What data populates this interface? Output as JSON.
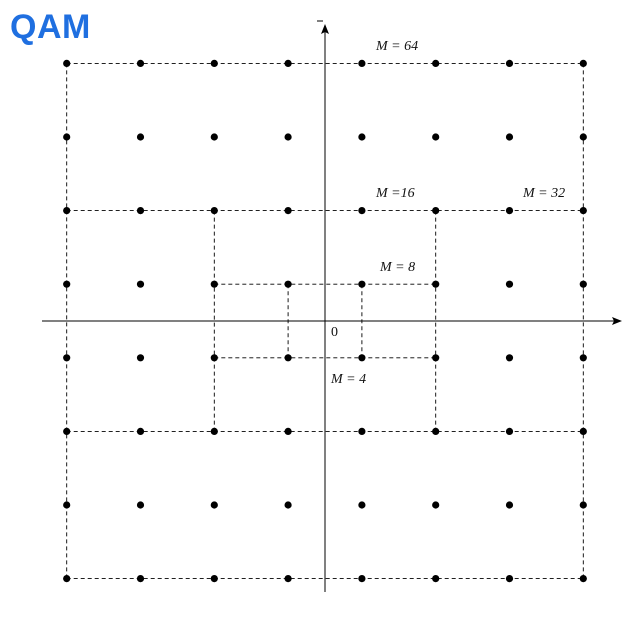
{
  "title": "QAM",
  "colors": {
    "title": "#1f6fe0",
    "ink": "#000000"
  },
  "origin_label": "0",
  "constellation": {
    "grid_coords": [
      -7,
      -5,
      -3,
      -1,
      1,
      3,
      5,
      7
    ],
    "regions": [
      {
        "id": "m4",
        "label": "M = 4",
        "ext": 1
      },
      {
        "id": "m8",
        "label": "M = 8",
        "ext": 3
      },
      {
        "id": "m16",
        "label": "M =16",
        "ext": 3
      },
      {
        "id": "m32",
        "label": "M = 32",
        "ext": 7
      },
      {
        "id": "m64",
        "label": "M = 64",
        "ext": 7
      }
    ]
  }
}
